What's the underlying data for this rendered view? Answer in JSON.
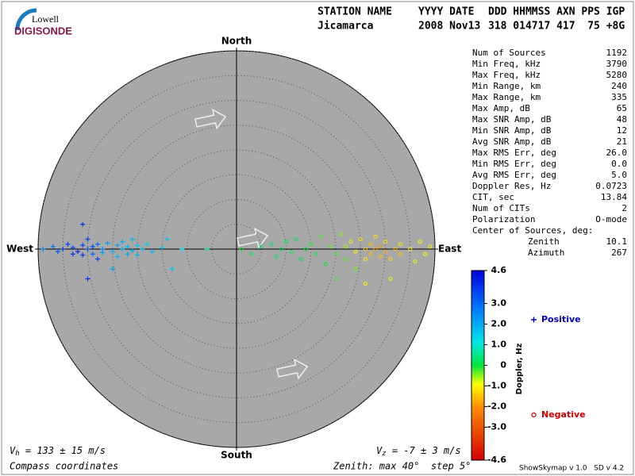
{
  "logo": {
    "line1": "Lowell",
    "line2": "DIGISONDE"
  },
  "header": {
    "labels": [
      "STATION NAME",
      "YYYY DATE",
      "DDD HHMMSS AXN PPS IGP"
    ],
    "values": [
      "Jicamarca",
      "2008 Nov13",
      "318 014717 417  75 +8G"
    ]
  },
  "stats": [
    {
      "label": "Num of Sources",
      "value": "1192"
    },
    {
      "label": "Min Freq, kHz",
      "value": "3790"
    },
    {
      "label": "Max Freq, kHz",
      "value": "5280"
    },
    {
      "label": "Min Range, km",
      "value": "240"
    },
    {
      "label": "Max Range, km",
      "value": "335"
    },
    {
      "label": "Max Amp, dB",
      "value": "65"
    },
    {
      "label": "Max SNR Amp, dB",
      "value": "48"
    },
    {
      "label": "Min SNR Amp, dB",
      "value": "12"
    },
    {
      "label": "Avg SNR Amp, dB",
      "value": "21"
    },
    {
      "label": "Max RMS Err, deg",
      "value": "26.0"
    },
    {
      "label": "Min RMS Err, deg",
      "value": "0.0"
    },
    {
      "label": "Avg RMS Err, deg",
      "value": "5.0"
    },
    {
      "label": "Doppler Res, Hz",
      "value": "0.0723"
    },
    {
      "label": "CIT, sec",
      "value": "13.84"
    },
    {
      "label": "Num of CITs",
      "value": "2"
    },
    {
      "label": "Polarization",
      "value": "O-mode"
    }
  ],
  "center": {
    "title": "Center of Sources, deg:",
    "rows": [
      {
        "label": "Zenith",
        "value": "10.1"
      },
      {
        "label": "Azimuth",
        "value": "267"
      }
    ]
  },
  "footer": {
    "vh": {
      "symbol": "V",
      "sub": "h",
      "text": " = 133 ± 15 m/s"
    },
    "vz": {
      "symbol": "V",
      "sub": "z",
      "text": " = -7 ± 3 m/s"
    },
    "coords": "Compass coordinates",
    "zenith": "Zenith: max 40°  step 5°",
    "version": "ShowSkymap v 1.0   SD v 4.2"
  },
  "chart_data": {
    "type": "skymap",
    "directions": {
      "north": "North",
      "south": "South",
      "east": "East",
      "west": "West"
    },
    "rlim": [
      0,
      40
    ],
    "rticks": [
      5,
      10,
      15,
      20,
      25,
      30,
      35,
      40
    ],
    "clim": [
      -4.6,
      4.6
    ],
    "clabel": "Doppler, Hz",
    "cticks": [
      4.6,
      {
        "value": 3,
        "label": "3.0"
      },
      {
        "value": 2,
        "label": "2.0"
      },
      {
        "value": 1,
        "label": "1.0"
      },
      0,
      {
        "value": -1,
        "label": "-1.0"
      },
      {
        "value": -2,
        "label": "-2.0"
      },
      {
        "value": -3,
        "label": "-3.0"
      },
      -4.6
    ],
    "series": [
      {
        "name": "Positive",
        "color": "#0000c0",
        "marker": "plus",
        "x": [
          -39,
          -37,
          -36,
          -35,
          -34,
          -33,
          -33,
          -32,
          -31,
          -31,
          -30,
          -30,
          -29,
          -29,
          -28,
          -28,
          -27,
          -27,
          -26,
          -25,
          -24,
          -24,
          -23,
          -23,
          -22,
          -22,
          -21,
          -21,
          -20,
          -20,
          -19,
          -18,
          -17,
          -15,
          -13,
          -11,
          -30,
          -31,
          -25,
          -14,
          -6
        ],
        "y": [
          0,
          0.5,
          -0.5,
          0,
          1,
          -1,
          0.3,
          -0.5,
          0.8,
          -1.2,
          0,
          2,
          -1,
          0.5,
          -2,
          1,
          0,
          -0.7,
          1.2,
          -0.5,
          0.8,
          -1.5,
          0,
          1.5,
          -1,
          0.5,
          2,
          -0.3,
          0.7,
          -1.2,
          0,
          1,
          -0.5,
          0.3,
          -4,
          0,
          -6,
          5,
          -4,
          2,
          0
        ],
        "doppler": [
          2.5,
          2.8,
          3.2,
          3.5,
          3.6,
          3.8,
          3.4,
          3.9,
          3.5,
          3.7,
          3.3,
          3.6,
          3,
          3.4,
          3.5,
          2.8,
          2.5,
          2.2,
          2.2,
          1.9,
          2,
          1.8,
          2.1,
          1.9,
          2,
          1.7,
          1.8,
          2,
          1.6,
          1.9,
          1.7,
          1.5,
          1.8,
          1.6,
          1.5,
          1.2,
          3.9,
          3.8,
          2,
          1.6,
          0.6
        ]
      },
      {
        "name": "Negative",
        "color": "#d00000",
        "marker": "circle",
        "x": [
          1,
          3,
          5,
          7,
          8,
          9,
          10,
          11,
          12,
          13,
          14,
          15,
          16,
          17,
          18,
          19,
          20,
          21,
          22,
          22,
          23,
          24,
          24,
          25,
          26,
          26,
          27,
          27,
          28,
          28,
          29,
          29,
          30,
          30,
          31,
          32,
          33,
          33,
          35,
          36,
          37,
          38,
          39,
          20,
          26,
          31
        ],
        "y": [
          0,
          -1,
          0.5,
          1,
          -1.5,
          0,
          1.5,
          -0.5,
          2,
          -2,
          0,
          1,
          -1,
          2.5,
          -3,
          0.5,
          -1,
          3,
          -2,
          0.5,
          1.5,
          -0.5,
          -4,
          2,
          0,
          -2,
          1,
          -1,
          0,
          2.5,
          -1.5,
          0.5,
          -0.5,
          1.5,
          -2,
          0,
          1,
          -1,
          0,
          -2.5,
          1.5,
          -1,
          0.5,
          -6,
          -7,
          -6
        ],
        "doppler": [
          -0.1,
          0.2,
          0.3,
          0.4,
          0.3,
          0.2,
          0.1,
          0.3,
          0.2,
          0.1,
          0,
          -0.1,
          0.1,
          -0.3,
          0,
          -0.4,
          -0.2,
          -0.5,
          -0.3,
          -0.6,
          -0.8,
          -1,
          -0.4,
          -1.2,
          -1.4,
          -1,
          -1.5,
          -1.6,
          -1.8,
          -1.3,
          -1.5,
          -2,
          -1.7,
          -1.2,
          -1.3,
          -1.6,
          -1.2,
          -1.4,
          -1,
          -0.8,
          -1,
          -0.9,
          -1.1,
          -0.2,
          -1,
          -0.8
        ]
      }
    ]
  }
}
